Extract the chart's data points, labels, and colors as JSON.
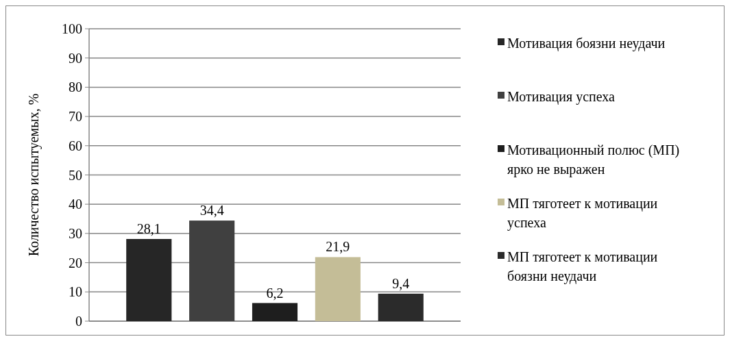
{
  "chart_data": {
    "type": "bar",
    "ylabel": "Количество испытуемых, %",
    "categories": [
      null
    ],
    "ylim": [
      0,
      100
    ],
    "yticks": [
      0,
      10,
      20,
      30,
      40,
      50,
      60,
      70,
      80,
      90,
      100
    ],
    "grid": "y",
    "legend": "right",
    "series": [
      {
        "name": "Мотивация боязни неудачи",
        "color": "#262626",
        "values": [
          28.1
        ],
        "value_labels": [
          "28,1"
        ]
      },
      {
        "name": "Мотивация успеха",
        "color": "#404040",
        "values": [
          34.4
        ],
        "value_labels": [
          "34,4"
        ]
      },
      {
        "name": "Мотивационный полюс (МП) ярко не выражен",
        "color": "#1e1e1e",
        "values": [
          6.2
        ],
        "value_labels": [
          "6,2"
        ]
      },
      {
        "name": "МП тяготеет к мотивации успеха",
        "color": "#c4bd97",
        "values": [
          21.9
        ],
        "value_labels": [
          "21,9"
        ]
      },
      {
        "name": "МП тяготеет к мотивации боязни неудачи",
        "color": "#2b2b2b",
        "values": [
          9.4
        ],
        "value_labels": [
          "9,4"
        ]
      }
    ]
  }
}
